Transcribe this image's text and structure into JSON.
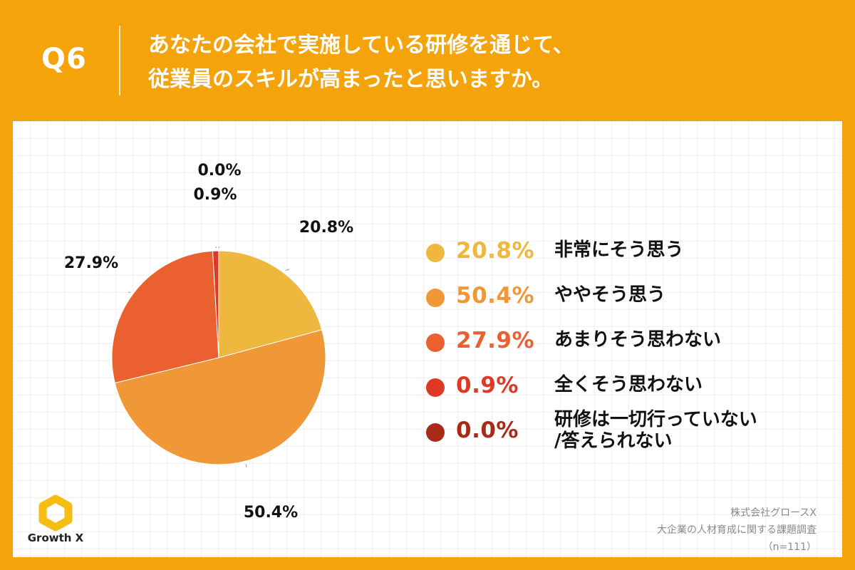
{
  "header": {
    "question_number": "Q6",
    "title_line1": "あなたの会社で実施している研修を通じて、",
    "title_line2": "従業員のスキルが高まったと思いますか。"
  },
  "chart_data": {
    "type": "pie",
    "title": "あなたの会社で実施している研修を通じて、従業員のスキルが高まったと思いますか。",
    "slices": [
      {
        "label": "非常にそう思う",
        "value": 20.8,
        "display": "20.8%",
        "color": "#EDB83D"
      },
      {
        "label": "ややそう思う",
        "value": 50.4,
        "display": "50.4%",
        "color": "#F09838"
      },
      {
        "label": "あまりそう思わない",
        "value": 27.9,
        "display": "27.9%",
        "color": "#EA6030"
      },
      {
        "label": "全くそう思わない",
        "value": 0.9,
        "display": "0.9%",
        "color": "#DD3A25"
      },
      {
        "label": "研修は一切行っていない/答えられない",
        "value": 0.0,
        "display": "0.0%",
        "color": "#A82A17"
      }
    ],
    "legend_position": "right"
  },
  "legend": [
    {
      "pct": "20.8%",
      "lines": [
        "非常にそう思う"
      ],
      "color": "#EDB83D"
    },
    {
      "pct": "50.4%",
      "lines": [
        "ややそう思う"
      ],
      "color": "#F09838"
    },
    {
      "pct": "27.9%",
      "lines": [
        "あまりそう思わない"
      ],
      "color": "#EA6030"
    },
    {
      "pct": "0.9%",
      "lines": [
        "全くそう思わない"
      ],
      "color": "#DD3A25"
    },
    {
      "pct": "0.0%",
      "lines": [
        "研修は一切行っていない",
        "/答えられない"
      ],
      "color": "#A82A17"
    }
  ],
  "logo": {
    "text": "Growth X"
  },
  "source": {
    "company": "株式会社グロースX",
    "survey": "大企業の人材育成に関する課題調査",
    "sample": "（n=111）"
  },
  "colors": {
    "background": "#F4A30A",
    "panel": "#FFFFFF"
  }
}
